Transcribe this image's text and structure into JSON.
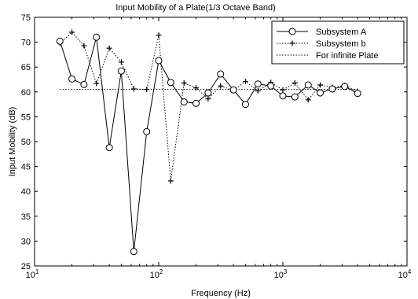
{
  "chart_data": {
    "type": "line",
    "title": "Input Mobility of a Plate(1/3 Octave Band)",
    "xlabel": "Frequency (Hz)",
    "ylabel": "Input Mobility (dB)",
    "xscale": "log",
    "xlim": [
      10,
      10000
    ],
    "ylim": [
      25,
      75
    ],
    "yticks": [
      25,
      30,
      35,
      40,
      45,
      50,
      55,
      60,
      65,
      70,
      75
    ],
    "xticks": [
      {
        "value": 10,
        "base": "10",
        "exp": "1"
      },
      {
        "value": 100,
        "base": "10",
        "exp": "2"
      },
      {
        "value": 1000,
        "base": "10",
        "exp": "3"
      },
      {
        "value": 10000,
        "base": "10",
        "exp": "4"
      }
    ],
    "grid": false,
    "legend_position": "top-right",
    "series": [
      {
        "name": "Subsystem A",
        "style": "solid",
        "marker": "circle",
        "color": "#000000",
        "x": [
          16,
          20,
          25,
          31.5,
          40,
          50,
          63,
          80,
          100,
          125,
          160,
          200,
          250,
          315,
          400,
          500,
          630,
          800,
          1000,
          1250,
          1600,
          2000,
          2500,
          3150,
          4000
        ],
        "y": [
          70.2,
          62.6,
          61.5,
          71.0,
          48.8,
          64.2,
          27.9,
          52.0,
          66.3,
          61.9,
          58.0,
          57.7,
          59.8,
          63.6,
          60.4,
          57.5,
          61.6,
          61.2,
          59.2,
          59.0,
          61.4,
          59.8,
          60.6,
          61.1,
          59.7
        ]
      },
      {
        "name": "Subsystem b",
        "style": "dotted",
        "marker": "plus",
        "color": "#000000",
        "x": [
          16,
          20,
          25,
          31.5,
          40,
          50,
          63,
          80,
          100,
          125,
          160,
          200,
          250,
          315,
          400,
          500,
          630,
          800,
          1000,
          1250,
          1600,
          2000,
          2500,
          3150,
          4000
        ],
        "y": [
          69.8,
          72.0,
          69.3,
          61.7,
          68.8,
          66.0,
          60.6,
          60.5,
          71.4,
          42.1,
          61.8,
          60.8,
          58.6,
          61.2,
          60.3,
          62.1,
          60.2,
          61.9,
          60.4,
          61.8,
          58.4,
          61.4,
          60.9,
          61.3,
          60.1
        ]
      },
      {
        "name": "For infinite Plate",
        "style": "dotted",
        "marker": "none",
        "color": "#000000",
        "x": [
          16,
          4000
        ],
        "y": [
          60.5,
          60.5
        ]
      }
    ]
  }
}
